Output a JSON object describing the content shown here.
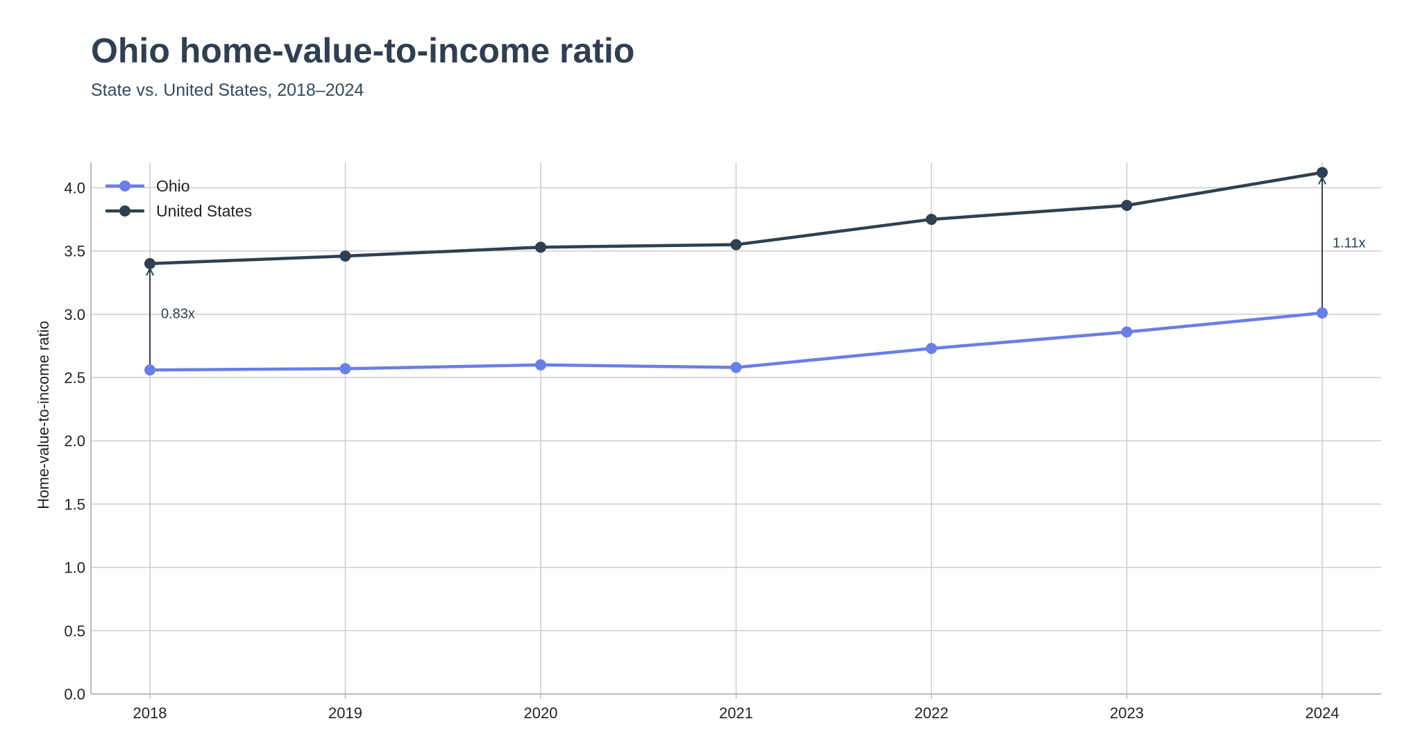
{
  "chart_data": {
    "type": "line",
    "title": "Ohio home-value-to-income ratio",
    "subtitle": "State vs. United States, 2018–2024",
    "xlabel": "",
    "ylabel": "Home-value-to-income ratio",
    "x": [
      "2018",
      "2019",
      "2020",
      "2021",
      "2022",
      "2023",
      "2024"
    ],
    "ylim": [
      0,
      4.2
    ],
    "yticks": [
      0.0,
      0.5,
      1.0,
      1.5,
      2.0,
      2.5,
      3.0,
      3.5,
      4.0
    ],
    "ytick_labels": [
      "0.0",
      "0.5",
      "1.0",
      "1.5",
      "2.0",
      "2.5",
      "3.0",
      "3.5",
      "4.0"
    ],
    "grid": true,
    "legend_position": "top-left",
    "series": [
      {
        "name": "Ohio",
        "color": "#6a7ee6",
        "values": [
          2.56,
          2.57,
          2.6,
          2.58,
          2.73,
          2.86,
          3.01
        ]
      },
      {
        "name": "United States",
        "color": "#2f4050",
        "values": [
          3.4,
          3.46,
          3.53,
          3.55,
          3.75,
          3.86,
          4.12
        ]
      }
    ],
    "annotations": [
      {
        "x": "2018",
        "from": 2.56,
        "to": 3.4,
        "label": "0.83x"
      },
      {
        "x": "2024",
        "from": 3.01,
        "to": 4.12,
        "label": "1.11x"
      }
    ]
  }
}
